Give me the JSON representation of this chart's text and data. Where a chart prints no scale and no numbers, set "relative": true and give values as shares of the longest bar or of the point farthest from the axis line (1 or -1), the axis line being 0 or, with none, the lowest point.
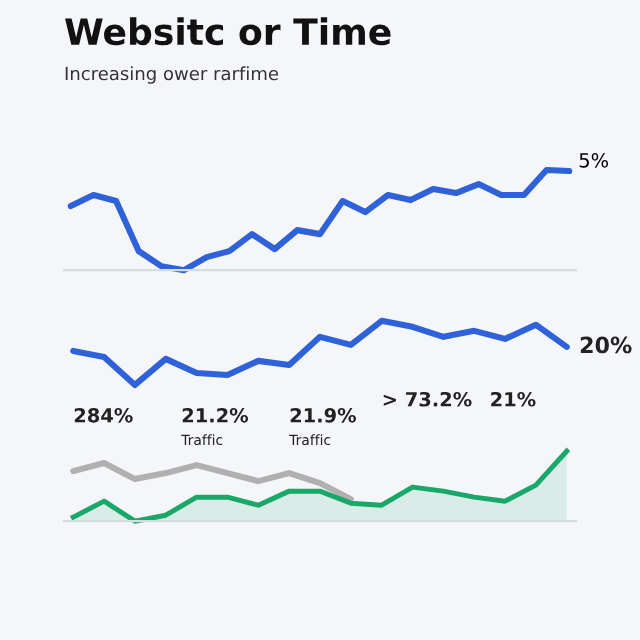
{
  "chart_data": [
    {
      "type": "line",
      "title": "Websitc or Time",
      "subtitle": "Increasing ower rarfime",
      "relative": true,
      "grid": false,
      "legend": false,
      "categories": [
        null,
        null,
        null,
        null,
        null,
        null,
        null,
        null,
        null,
        null,
        null,
        null,
        null,
        null,
        null,
        null,
        null,
        null,
        null,
        null,
        null,
        null,
        null
      ],
      "series": [
        {
          "color": "#2f62d8",
          "values": [
            0.64,
            0.75,
            0.69,
            0.19,
            0.04,
            0,
            0.13,
            0.19,
            0.36,
            0.21,
            0.4,
            0.36,
            0.69,
            0.58,
            0.75,
            0.7,
            0.81,
            0.77,
            0.86,
            0.75,
            0.75,
            1,
            0.99
          ]
        }
      ],
      "annotations": [
        "5%"
      ]
    },
    {
      "type": "line",
      "relative": true,
      "grid": false,
      "legend": false,
      "categories": [
        null,
        null,
        null,
        null,
        null,
        null,
        null,
        null,
        null,
        null,
        null,
        null,
        null,
        null,
        null,
        null,
        null
      ],
      "series": [
        {
          "color": "#2f62d8",
          "values": [
            0.85,
            0.82,
            0.68,
            0.81,
            0.74,
            0.73,
            0.8,
            0.78,
            0.92,
            0.88,
            1.0,
            0.97,
            0.92,
            0.95,
            0.91,
            0.98,
            0.87
          ]
        },
        {
          "color": "#b0b0b0",
          "values": [
            0.25,
            0.29,
            0.21,
            0.24,
            0.28,
            0.24,
            0.2,
            0.24,
            0.19,
            0.11,
            null,
            null,
            null,
            null,
            null,
            null,
            null
          ]
        },
        {
          "type": "area",
          "color": "#1aa86a",
          "values": [
            0.02,
            0.1,
            0,
            0.03,
            0.12,
            0.12,
            0.08,
            0.15,
            0.15,
            0.09,
            0.08,
            0.17,
            0.15,
            0.12,
            0.1,
            0.18,
            0.35
          ]
        }
      ],
      "annotations": [
        "20%",
        "284%",
        "21.2%",
        "Traffic",
        "21.9%",
        "Traffic",
        "> 73.2%",
        "21%"
      ]
    }
  ]
}
